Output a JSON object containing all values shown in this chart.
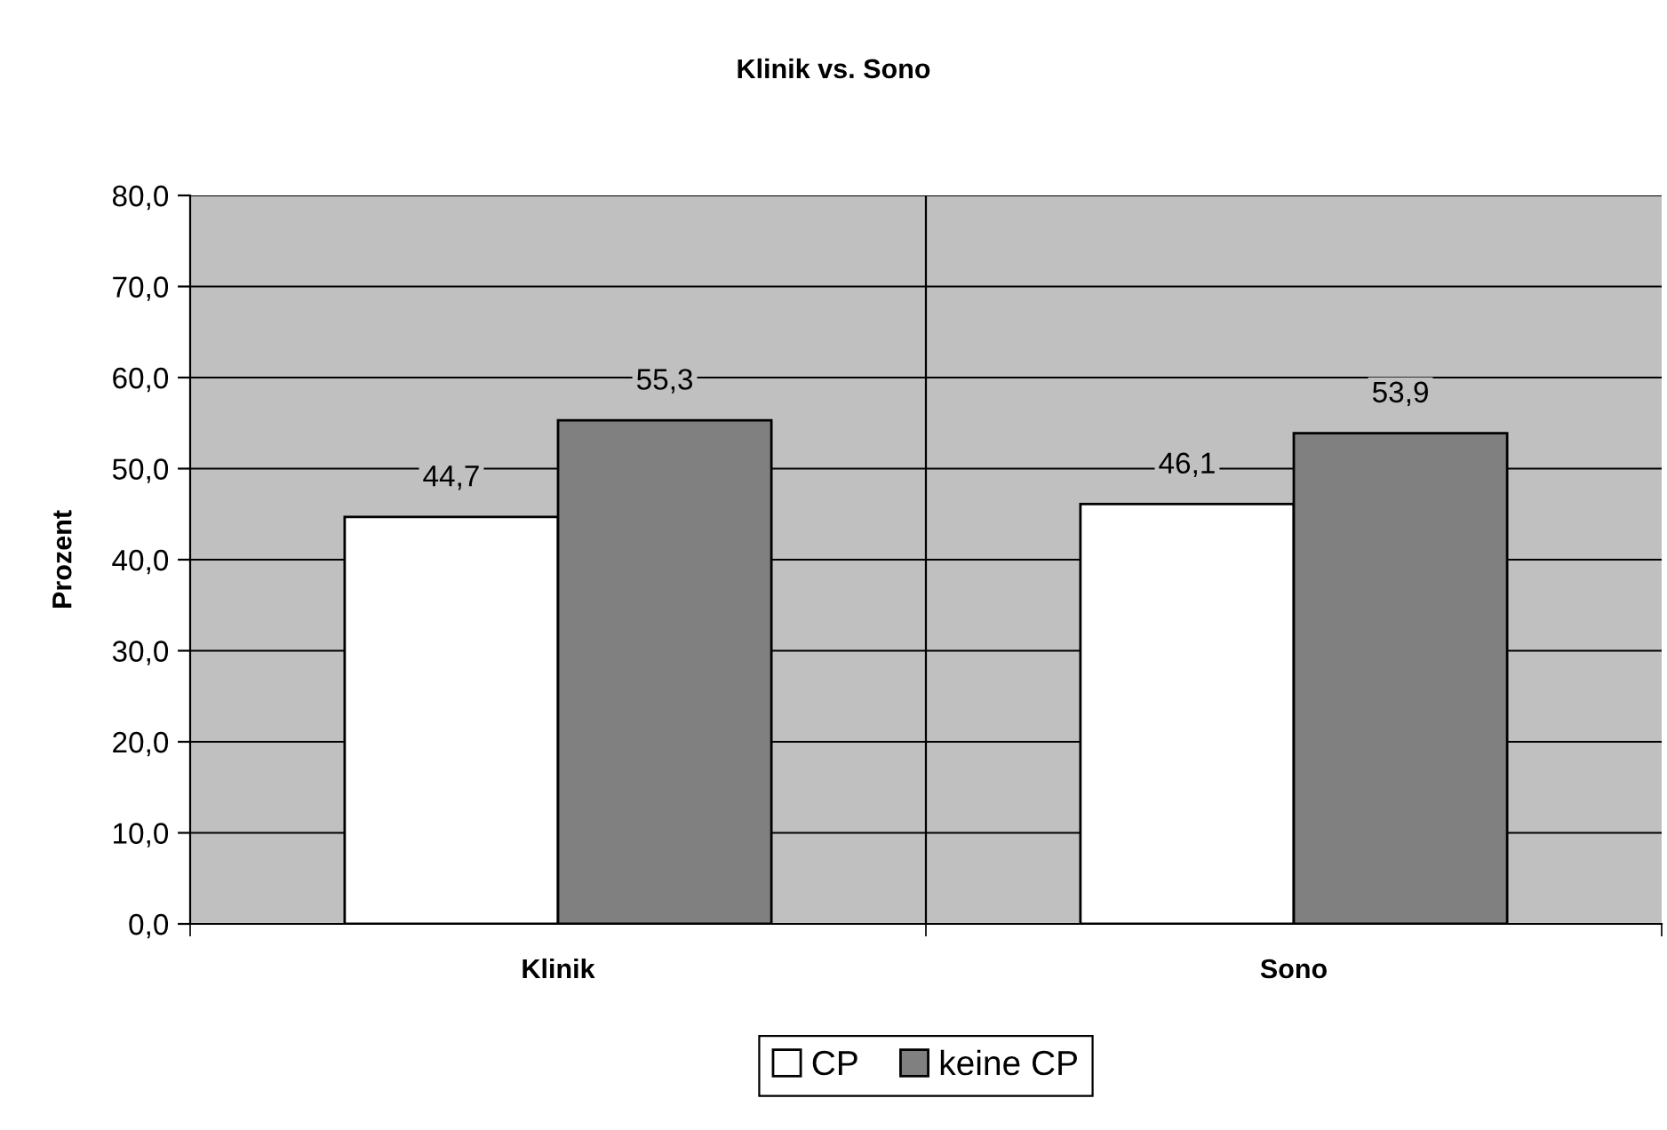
{
  "chart_data": {
    "type": "bar",
    "title": "Klinik vs. Sono",
    "ylabel": "Prozent",
    "categories": [
      "Klinik",
      "Sono"
    ],
    "series": [
      {
        "name": "CP",
        "color": "#ffffff",
        "values": [
          44.7,
          46.1
        ],
        "value_labels": [
          "44,7",
          "46,1"
        ]
      },
      {
        "name": "keine CP",
        "color": "#808080",
        "values": [
          55.3,
          53.9
        ],
        "value_labels": [
          "55,3",
          "53,9"
        ]
      }
    ],
    "ylim": [
      0,
      80
    ],
    "yticks": [
      {
        "value": 0,
        "label": "0,0"
      },
      {
        "value": 10,
        "label": "10,0"
      },
      {
        "value": 20,
        "label": "20,0"
      },
      {
        "value": 30,
        "label": "30,0"
      },
      {
        "value": 40,
        "label": "40,0"
      },
      {
        "value": 50,
        "label": "50,0"
      },
      {
        "value": 60,
        "label": "60,0"
      },
      {
        "value": 70,
        "label": "70,0"
      },
      {
        "value": 80,
        "label": "80,0"
      }
    ],
    "grid": true,
    "legend": "bottom"
  }
}
